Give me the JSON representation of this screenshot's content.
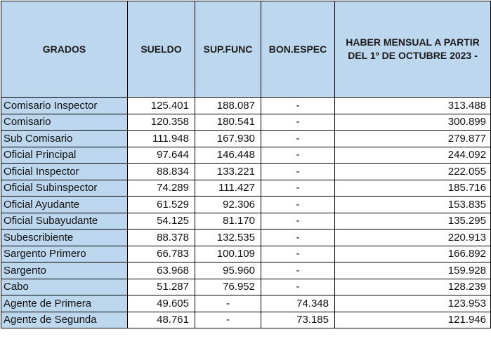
{
  "headers": {
    "grados": "GRADOS",
    "sueldo": "SUELDO",
    "sup_func": "SUP.FUNC",
    "bon_espec": "BON.ESPEC",
    "haber": "HABER MENSUAL A PARTIR DEL 1º DE OCTUBRE 2023 -"
  },
  "rows": [
    {
      "grado": "Comisario Inspector",
      "sueldo": "125.401",
      "sup_func": "188.087",
      "bon_espec": "-",
      "haber": "313.488"
    },
    {
      "grado": "Comisario",
      "sueldo": "120.358",
      "sup_func": "180.541",
      "bon_espec": "-",
      "haber": "300.899"
    },
    {
      "grado": "Sub Comisario",
      "sueldo": "111.948",
      "sup_func": "167.930",
      "bon_espec": "-",
      "haber": "279.877"
    },
    {
      "grado": "Oficial Principal",
      "sueldo": "97.644",
      "sup_func": "146.448",
      "bon_espec": "-",
      "haber": "244.092"
    },
    {
      "grado": "Oficial Inspector",
      "sueldo": "88.834",
      "sup_func": "133.221",
      "bon_espec": "-",
      "haber": "222.055"
    },
    {
      "grado": "Oficial Subinspector",
      "sueldo": "74.289",
      "sup_func": "111.427",
      "bon_espec": "-",
      "haber": "185.716"
    },
    {
      "grado": "Oficial Ayudante",
      "sueldo": "61.529",
      "sup_func": "92.306",
      "bon_espec": "-",
      "haber": "153.835"
    },
    {
      "grado": "Oficial Subayudante",
      "sueldo": "54.125",
      "sup_func": "81.170",
      "bon_espec": "-",
      "haber": "135.295"
    },
    {
      "grado": "Subescribiente",
      "sueldo": "88.378",
      "sup_func": "132.535",
      "bon_espec": "-",
      "haber": "220.913"
    },
    {
      "grado": "Sargento Primero",
      "sueldo": "66.783",
      "sup_func": "100.109",
      "bon_espec": "-",
      "haber": "166.892"
    },
    {
      "grado": "Sargento",
      "sueldo": "63.968",
      "sup_func": "95.960",
      "bon_espec": "-",
      "haber": "159.928"
    },
    {
      "grado": "Cabo",
      "sueldo": "51.287",
      "sup_func": "76.952",
      "bon_espec": "-",
      "haber": "128.239"
    },
    {
      "grado": "Agente de Primera",
      "sueldo": "49.605",
      "sup_func": "-",
      "bon_espec": "74.348",
      "haber": "123.953"
    },
    {
      "grado": "Agente de Segunda",
      "sueldo": "48.761",
      "sup_func": "-",
      "bon_espec": "73.185",
      "haber": "121.946"
    }
  ]
}
